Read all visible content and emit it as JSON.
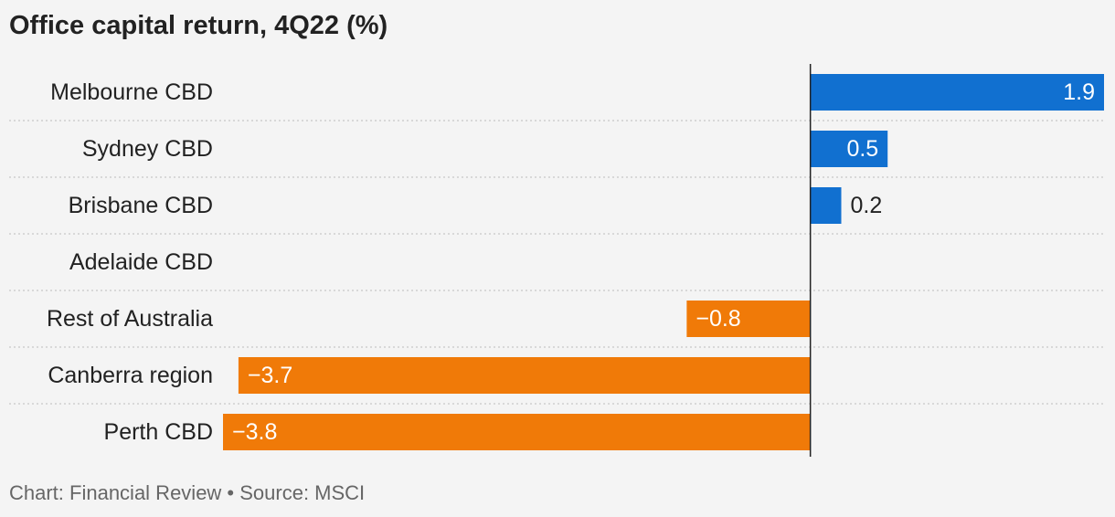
{
  "title": "Office capital return, 4Q22 (%)",
  "footer": "Chart: Financial Review • Source: MSCI",
  "colors": {
    "positive": "#1170d0",
    "negative": "#f07a08",
    "background": "#f4f4f4",
    "text": "#222222",
    "footer_text": "#666666",
    "separator": "#c8c8c8",
    "axis": "#222222"
  },
  "chart_data": {
    "type": "bar",
    "orientation": "horizontal",
    "categories": [
      "Melbourne CBD",
      "Sydney CBD",
      "Brisbane CBD",
      "Adelaide CBD",
      "Rest of Australia",
      "Canberra region",
      "Perth CBD"
    ],
    "values": [
      1.9,
      0.5,
      0.2,
      null,
      -0.8,
      -3.7,
      -3.8
    ],
    "value_labels": [
      "1.9",
      "0.5",
      "0.2",
      "",
      "−0.8",
      "−3.7",
      "−3.8"
    ],
    "title": "Office capital return, 4Q22 (%)",
    "xlabel": "",
    "ylabel": "",
    "xlim": [
      -3.8,
      1.9
    ],
    "grid": false,
    "legend": "none"
  }
}
